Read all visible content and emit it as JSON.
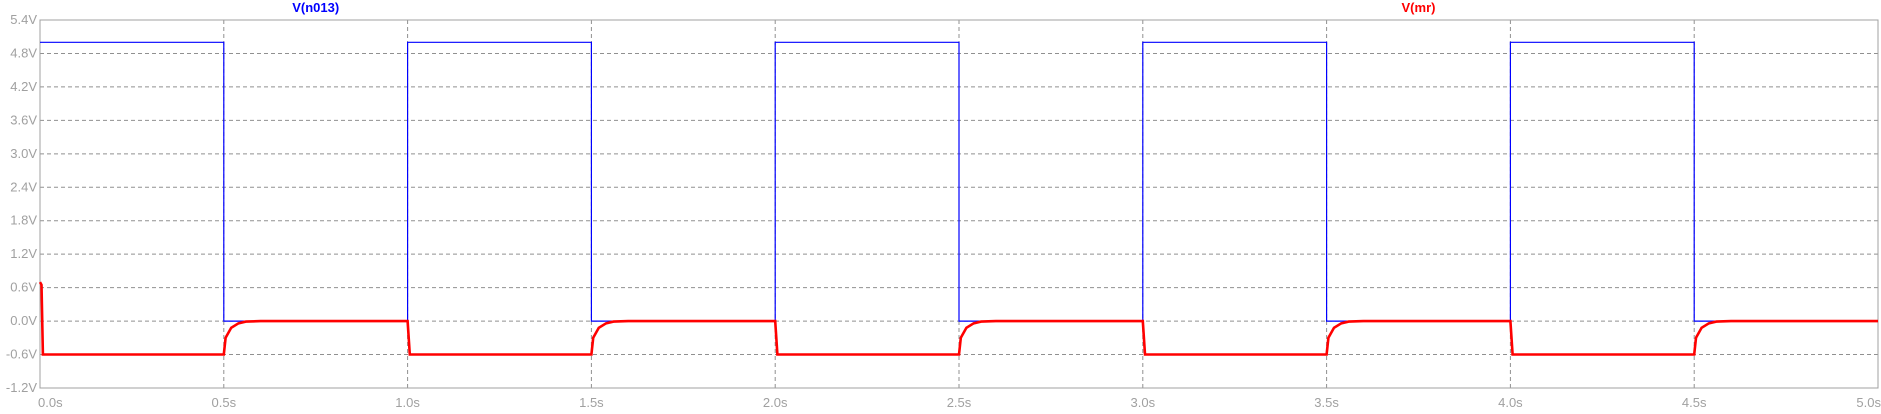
{
  "chart_data": {
    "type": "line",
    "title": "",
    "xlabel": "",
    "ylabel": "",
    "xlim": [
      0,
      5
    ],
    "ylim": [
      -1.2,
      5.4
    ],
    "grid": true,
    "x_ticks": [
      "0.0s",
      "0.5s",
      "1.0s",
      "1.5s",
      "2.0s",
      "2.5s",
      "3.0s",
      "3.5s",
      "4.0s",
      "4.5s",
      "5.0s"
    ],
    "y_ticks": [
      "5.4V",
      "4.8V",
      "4.2V",
      "3.6V",
      "3.0V",
      "2.4V",
      "1.8V",
      "1.2V",
      "0.6V",
      "0.0V",
      "-0.6V",
      "-1.2V"
    ],
    "series": [
      {
        "name": "V(n013)",
        "color": "#0000ff",
        "x": [
          0.0,
          0.0,
          0.5,
          0.5,
          1.0,
          1.0,
          1.5,
          1.5,
          2.0,
          2.0,
          2.5,
          2.5,
          3.0,
          3.0,
          3.5,
          3.5,
          4.0,
          4.0,
          4.5,
          4.5,
          5.0
        ],
        "y": [
          5.0,
          5.0,
          5.0,
          0.0,
          0.0,
          5.0,
          5.0,
          0.0,
          0.0,
          5.0,
          5.0,
          0.0,
          0.0,
          5.0,
          5.0,
          0.0,
          0.0,
          5.0,
          5.0,
          0.0,
          0.0
        ]
      },
      {
        "name": "V(mr)",
        "color": "#ff0000",
        "x": [
          0.0,
          0.004,
          0.008,
          0.012,
          0.5,
          0.505,
          0.52,
          0.54,
          0.56,
          0.6,
          1.0,
          1.006,
          1.5,
          1.505,
          1.52,
          1.54,
          1.56,
          1.6,
          2.0,
          2.006,
          2.5,
          2.505,
          2.52,
          2.54,
          2.56,
          2.6,
          3.0,
          3.006,
          3.5,
          3.505,
          3.52,
          3.54,
          3.56,
          3.6,
          4.0,
          4.006,
          4.5,
          4.505,
          4.52,
          4.54,
          4.56,
          4.6,
          5.0
        ],
        "y": [
          0.7,
          0.65,
          -0.6,
          -0.6,
          -0.6,
          -0.3,
          -0.12,
          -0.04,
          -0.01,
          0.0,
          0.0,
          -0.6,
          -0.6,
          -0.3,
          -0.12,
          -0.04,
          -0.01,
          0.0,
          0.0,
          -0.6,
          -0.6,
          -0.3,
          -0.12,
          -0.04,
          -0.01,
          0.0,
          0.0,
          -0.6,
          -0.6,
          -0.3,
          -0.12,
          -0.04,
          -0.01,
          0.0,
          0.0,
          -0.6,
          -0.6,
          -0.3,
          -0.12,
          -0.04,
          -0.01,
          0.0,
          0.0
        ]
      }
    ]
  }
}
